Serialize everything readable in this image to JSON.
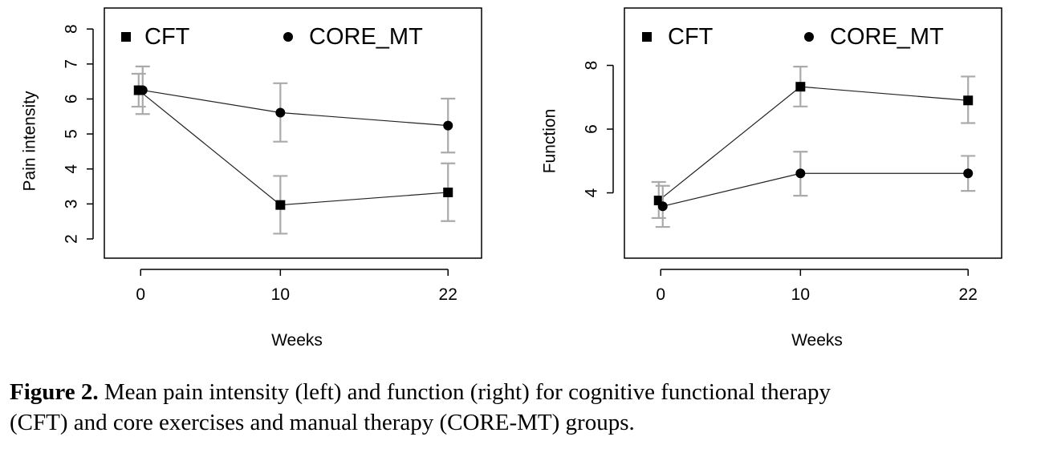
{
  "caption": {
    "label": "Figure 2.",
    "line1": " Mean pain intensity (left) and function (right) for cognitive functional therapy",
    "line2": "(CFT) and core exercises and manual therapy (CORE-MT) groups."
  },
  "chart_data": [
    {
      "type": "line",
      "title": "",
      "xlabel": "Weeks",
      "ylabel": "Pain intensity",
      "x_ticks": [
        0,
        10,
        22
      ],
      "y_ticks": [
        2,
        3,
        4,
        5,
        6,
        7,
        8
      ],
      "xlim": [
        -2.6,
        24.4
      ],
      "ylim": [
        1.45,
        8.6
      ],
      "grid": false,
      "legend": "top",
      "series": [
        {
          "name": "CFT",
          "marker": "square",
          "x": [
            0,
            10,
            22
          ],
          "y": [
            6.25,
            2.97,
            3.33
          ],
          "err_low": [
            5.78,
            2.15,
            2.51
          ],
          "err_high": [
            6.72,
            3.8,
            4.16
          ]
        },
        {
          "name": "CORE_MT",
          "marker": "circle",
          "x": [
            0,
            10,
            22
          ],
          "y": [
            6.25,
            5.61,
            5.24
          ],
          "err_low": [
            5.57,
            4.78,
            4.47
          ],
          "err_high": [
            6.93,
            6.45,
            6.01
          ]
        }
      ]
    },
    {
      "type": "line",
      "title": "",
      "xlabel": "Weeks",
      "ylabel": "Function",
      "x_ticks": [
        0,
        10,
        22
      ],
      "y_ticks": [
        4,
        6,
        8
      ],
      "xlim": [
        -2.6,
        24.4
      ],
      "ylim": [
        1.95,
        9.8
      ],
      "grid": false,
      "legend": "top",
      "series": [
        {
          "name": "CFT",
          "marker": "square",
          "x": [
            0,
            10,
            22
          ],
          "y": [
            3.76,
            7.33,
            6.9
          ],
          "err_low": [
            3.21,
            6.71,
            6.19
          ],
          "err_high": [
            4.34,
            7.96,
            7.65
          ]
        },
        {
          "name": "CORE_MT",
          "marker": "circle",
          "x": [
            0,
            10,
            22
          ],
          "y": [
            3.58,
            4.61,
            4.61
          ],
          "err_low": [
            2.93,
            3.91,
            4.06
          ],
          "err_high": [
            4.22,
            5.29,
            5.16
          ]
        }
      ]
    }
  ]
}
